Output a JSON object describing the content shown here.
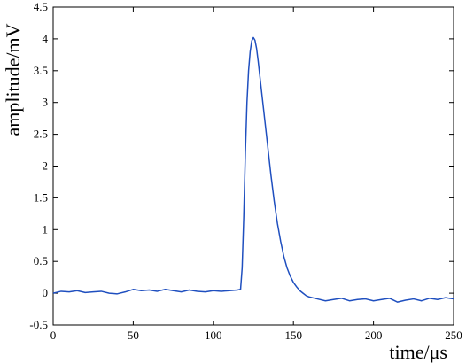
{
  "chart_data": {
    "type": "line",
    "xlabel": "time/μs",
    "ylabel": "amplitude/mV",
    "xlim": [
      0,
      250
    ],
    "ylim": [
      -0.5,
      4.5
    ],
    "x_ticks": [
      0,
      50,
      100,
      150,
      200,
      250
    ],
    "y_ticks": [
      -0.5,
      0,
      0.5,
      1,
      1.5,
      2,
      2.5,
      3,
      3.5,
      4,
      4.5
    ],
    "grid": false,
    "line_color": "#1f4fbf",
    "series": [
      {
        "x": [
          0,
          5,
          10,
          15,
          20,
          25,
          30,
          35,
          40,
          45,
          50,
          55,
          60,
          65,
          70,
          75,
          80,
          85,
          90,
          95,
          100,
          105,
          110,
          115,
          117,
          118,
          119,
          120,
          121,
          122,
          123,
          124,
          125,
          126,
          127,
          128,
          130,
          132,
          134,
          136,
          138,
          140,
          142,
          144,
          146,
          148,
          150,
          152,
          154,
          156,
          158,
          160,
          165,
          170,
          175,
          180,
          185,
          190,
          195,
          200,
          205,
          210,
          215,
          220,
          225,
          230,
          235,
          240,
          245,
          250
        ],
        "y": [
          0.0,
          0.03,
          0.02,
          0.04,
          0.01,
          0.02,
          0.03,
          0.0,
          -0.01,
          0.02,
          0.06,
          0.04,
          0.05,
          0.03,
          0.06,
          0.04,
          0.02,
          0.05,
          0.03,
          0.02,
          0.04,
          0.03,
          0.04,
          0.05,
          0.06,
          0.4,
          1.2,
          2.2,
          3.0,
          3.5,
          3.8,
          3.97,
          4.02,
          3.98,
          3.85,
          3.65,
          3.2,
          2.75,
          2.3,
          1.85,
          1.45,
          1.1,
          0.82,
          0.58,
          0.4,
          0.27,
          0.17,
          0.1,
          0.04,
          0.0,
          -0.04,
          -0.06,
          -0.09,
          -0.12,
          -0.1,
          -0.08,
          -0.12,
          -0.1,
          -0.09,
          -0.12,
          -0.1,
          -0.08,
          -0.14,
          -0.11,
          -0.09,
          -0.12,
          -0.08,
          -0.1,
          -0.07,
          -0.09
        ]
      }
    ]
  }
}
